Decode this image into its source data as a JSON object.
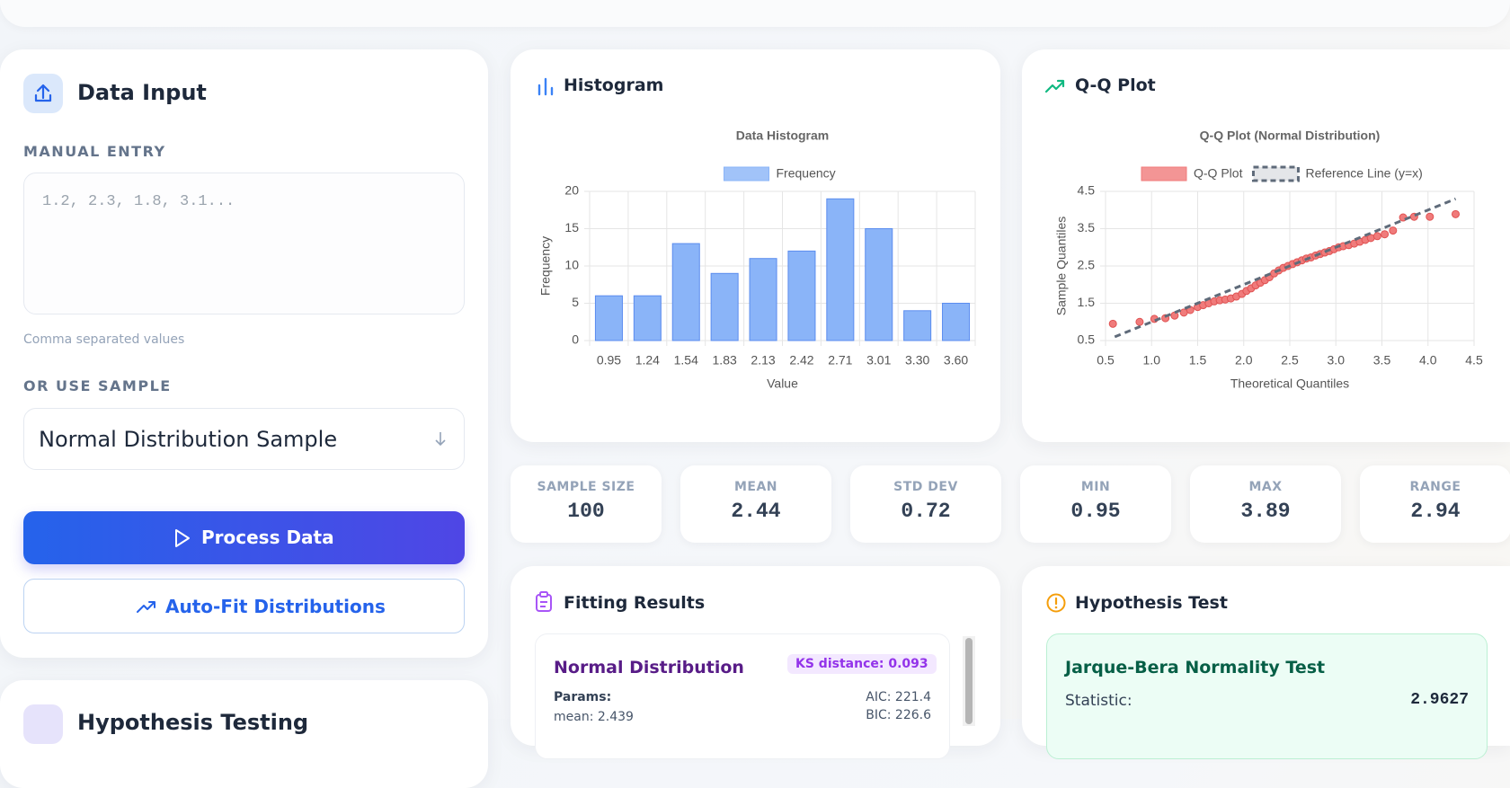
{
  "sidebar": {
    "title": "Data Input",
    "manual_entry_label": "MANUAL ENTRY",
    "manual_entry_placeholder": "1.2, 2.3, 1.8, 3.1...",
    "manual_entry_hint": "Comma separated values",
    "sample_label": "OR USE SAMPLE",
    "sample_selected": "Normal Distribution Sample",
    "process_button": "Process Data",
    "autofit_button": "Auto-Fit Distributions",
    "next_section_title": "Hypothesis Testing"
  },
  "histogram_panel": {
    "title": "Histogram"
  },
  "qq_panel": {
    "title": "Q-Q Plot"
  },
  "chart_data": [
    {
      "type": "bar",
      "title": "Data Histogram",
      "x_label": "Value",
      "y_label": "Frequency",
      "categories": [
        "0.95",
        "1.24",
        "1.54",
        "1.83",
        "2.13",
        "2.42",
        "2.71",
        "3.01",
        "3.30",
        "3.60"
      ],
      "series": [
        {
          "name": "Frequency",
          "color": "#8ab4f8",
          "values": [
            6,
            6,
            13,
            9,
            11,
            12,
            19,
            15,
            4,
            5
          ]
        }
      ],
      "ylim": [
        0,
        20
      ],
      "yticks": [
        0,
        5,
        10,
        15,
        20
      ],
      "grid": true
    },
    {
      "type": "scatter",
      "title": "Q-Q Plot (Normal Distribution)",
      "x_label": "Theoretical Quantiles",
      "y_label": "Sample Quantiles",
      "xlim": [
        0.5,
        4.5
      ],
      "xticks": [
        0.5,
        {
          "value": 1,
          "label": "1.0"
        },
        1.5,
        {
          "value": 2,
          "label": "2.0"
        },
        2.5,
        {
          "value": 3,
          "label": "3.0"
        },
        3.5,
        {
          "value": 4,
          "label": "4.0"
        },
        4.5
      ],
      "ylim": [
        0.5,
        4.5
      ],
      "yticks": [
        0.5,
        1.5,
        2.5,
        3.5,
        4.5
      ],
      "grid": true,
      "series": [
        {
          "name": "Q-Q Plot",
          "type": "scatter",
          "color": "#f07b7b",
          "x": [
            0.58,
            0.87,
            1.03,
            1.15,
            1.25,
            1.35,
            1.42,
            1.5,
            1.56,
            1.62,
            1.68,
            1.74,
            1.8,
            1.86,
            1.92,
            1.98,
            2.03,
            2.08,
            2.13,
            2.18,
            2.23,
            2.28,
            2.33,
            2.38,
            2.43,
            2.48,
            2.53,
            2.58,
            2.63,
            2.68,
            2.73,
            2.78,
            2.83,
            2.88,
            2.93,
            2.98,
            3.03,
            3.08,
            3.14,
            3.2,
            3.26,
            3.32,
            3.38,
            3.45,
            3.53,
            3.62,
            3.73,
            3.85,
            4.02,
            4.3
          ],
          "values": [
            0.95,
            1.0,
            1.08,
            1.1,
            1.17,
            1.25,
            1.32,
            1.4,
            1.45,
            1.5,
            1.55,
            1.58,
            1.6,
            1.63,
            1.68,
            1.75,
            1.83,
            1.9,
            1.98,
            2.05,
            2.12,
            2.2,
            2.3,
            2.38,
            2.45,
            2.5,
            2.55,
            2.6,
            2.65,
            2.7,
            2.73,
            2.78,
            2.82,
            2.86,
            2.9,
            2.95,
            3.0,
            3.03,
            3.06,
            3.1,
            3.15,
            3.2,
            3.25,
            3.3,
            3.35,
            3.45,
            3.8,
            3.82,
            3.82,
            3.89
          ]
        },
        {
          "name": "Reference Line (y=x)",
          "type": "line",
          "color": "#5f6b7a",
          "dashed": true,
          "x": [
            0.6,
            4.3
          ],
          "values": [
            0.6,
            4.3
          ]
        }
      ]
    }
  ],
  "stats": [
    {
      "label": "SAMPLE SIZE",
      "value": 100
    },
    {
      "label": "MEAN",
      "value": 2.44
    },
    {
      "label": "STD DEV",
      "value": 0.72
    },
    {
      "label": "MIN",
      "value": 0.95
    },
    {
      "label": "MAX",
      "value": 3.89
    },
    {
      "label": "RANGE",
      "value": 2.94
    }
  ],
  "fitting_results": {
    "title": "Fitting Results",
    "distribution": "Normal Distribution",
    "ks_badge": "KS distance: 0.093",
    "params_label": "Params:",
    "param_mean": "mean: 2.439",
    "aic": "AIC: 221.4",
    "bic": "BIC: 226.6"
  },
  "hypothesis_test": {
    "title": "Hypothesis Test",
    "test_name": "Jarque-Bera Normality Test",
    "statistic_label": "Statistic:",
    "statistic_value": "2.9627"
  }
}
